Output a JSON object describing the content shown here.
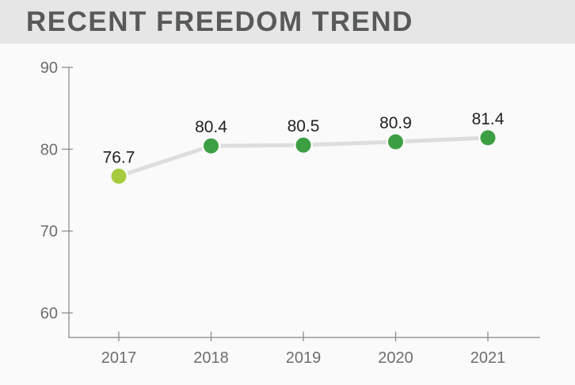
{
  "header": {
    "title": "RECENT FREEDOM TREND"
  },
  "chart_data": {
    "type": "line",
    "title": "RECENT FREEDOM TREND",
    "categories": [
      "2017",
      "2018",
      "2019",
      "2020",
      "2021"
    ],
    "values": [
      76.7,
      80.4,
      80.5,
      80.9,
      81.4
    ],
    "point_labels": [
      "76.7",
      "80.4",
      "80.5",
      "80.9",
      "81.4"
    ],
    "yticks": [
      90,
      80,
      70,
      60
    ],
    "ylim": [
      57,
      90
    ],
    "xlabel": "",
    "ylabel": "",
    "grid": false,
    "legend": false,
    "colors": {
      "header_bg": "#e6e6e6",
      "body_bg": "#fafafa",
      "title": "#58595b",
      "axis": "#85868a",
      "tick_label": "#6d6e71",
      "data_label": "#231f20",
      "line": "#dcdddd",
      "points": [
        "#a6cc3e",
        "#3d9f44",
        "#3d9f44",
        "#3d9f44",
        "#3d9f44"
      ]
    }
  }
}
